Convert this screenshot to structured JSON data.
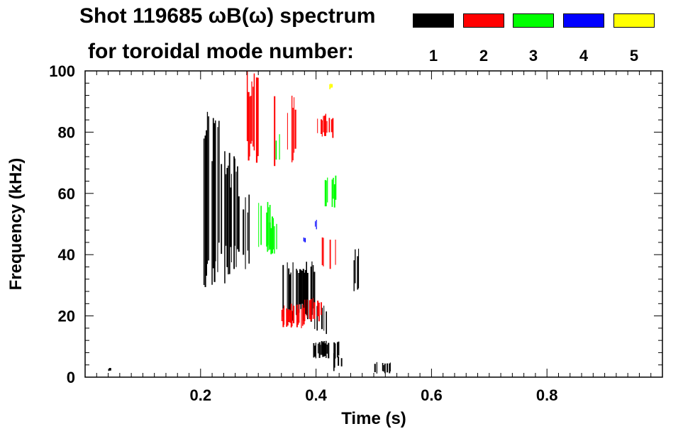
{
  "title_line1": "Shot 119685 ωB(ω) spectrum",
  "title_line2": "for toroidal mode number:",
  "chart_data": {
    "type": "heatmap",
    "title": "Shot 119685 ωB(ω) spectrum for toroidal mode number:",
    "xlabel": "Time (s)",
    "ylabel": "Frequency (kHz)",
    "xlim": [
      0.0,
      1.0
    ],
    "ylim": [
      0,
      100
    ],
    "x_ticks": [
      0.2,
      0.4,
      0.6,
      0.8
    ],
    "x_tick_labels": [
      "0.2",
      "0.4",
      "0.6",
      "0.8"
    ],
    "y_ticks": [
      0,
      20,
      40,
      60,
      80,
      100
    ],
    "y_tick_labels": [
      "0",
      "20",
      "40",
      "60",
      "80",
      "100"
    ],
    "legend_placement": "top-right",
    "series": [
      {
        "name": "1",
        "color": "#000000",
        "regions": [
          {
            "t": [
              0.205,
              0.235
            ],
            "f": [
              28,
              88
            ]
          },
          {
            "t": [
              0.235,
              0.265
            ],
            "f": [
              30,
              75
            ]
          },
          {
            "t": [
              0.265,
              0.285
            ],
            "f": [
              35,
              60
            ]
          },
          {
            "t": [
              0.34,
              0.4
            ],
            "f": [
              18,
              38
            ]
          },
          {
            "t": [
              0.395,
              0.425
            ],
            "f": [
              14,
              24
            ]
          },
          {
            "t": [
              0.395,
              0.44
            ],
            "f": [
              6,
              12
            ]
          },
          {
            "t": [
              0.43,
              0.445
            ],
            "f": [
              2,
              8
            ]
          },
          {
            "t": [
              0.465,
              0.475
            ],
            "f": [
              28,
              42
            ]
          },
          {
            "t": [
              0.495,
              0.53
            ],
            "f": [
              1,
              5
            ]
          },
          {
            "t": [
              0.04,
              0.045
            ],
            "f": [
              2,
              3
            ]
          }
        ]
      },
      {
        "name": "2",
        "color": "#ff0000",
        "regions": [
          {
            "t": [
              0.28,
              0.3
            ],
            "f": [
              70,
              100
            ]
          },
          {
            "t": [
              0.325,
              0.335
            ],
            "f": [
              65,
              98
            ]
          },
          {
            "t": [
              0.35,
              0.365
            ],
            "f": [
              70,
              92
            ]
          },
          {
            "t": [
              0.4,
              0.43
            ],
            "f": [
              78,
              86
            ]
          },
          {
            "t": [
              0.41,
              0.435
            ],
            "f": [
              35,
              46
            ]
          },
          {
            "t": [
              0.34,
              0.38
            ],
            "f": [
              16,
              24
            ]
          },
          {
            "t": [
              0.38,
              0.41
            ],
            "f": [
              18,
              26
            ]
          }
        ]
      },
      {
        "name": "3",
        "color": "#00ff00",
        "regions": [
          {
            "t": [
              0.3,
              0.325
            ],
            "f": [
              38,
              58
            ]
          },
          {
            "t": [
              0.315,
              0.335
            ],
            "f": [
              40,
              52
            ]
          },
          {
            "t": [
              0.415,
              0.435
            ],
            "f": [
              55,
              66
            ]
          },
          {
            "t": [
              0.33,
              0.34
            ],
            "f": [
              70,
              80
            ]
          }
        ]
      },
      {
        "name": "4",
        "color": "#0000ff",
        "regions": [
          {
            "t": [
              0.398,
              0.402
            ],
            "f": [
              48,
              52
            ]
          },
          {
            "t": [
              0.378,
              0.382
            ],
            "f": [
              44,
              46
            ]
          }
        ]
      },
      {
        "name": "5",
        "color": "#ffff00",
        "regions": [
          {
            "t": [
              0.423,
              0.428
            ],
            "f": [
              94,
              96
            ]
          }
        ]
      }
    ]
  }
}
